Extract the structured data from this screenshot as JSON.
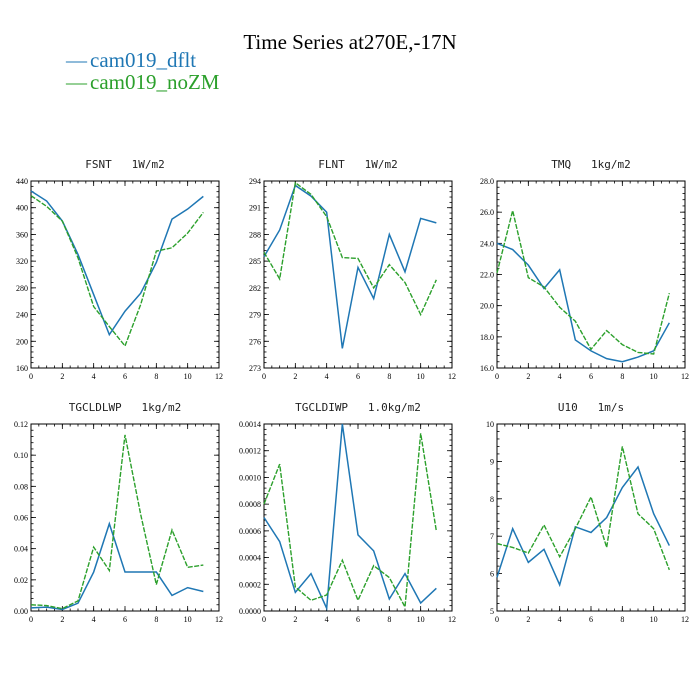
{
  "colors": {
    "dflt": "#1f77b4",
    "noZM": "#2ca02c"
  },
  "chart_data": {
    "type": "line",
    "title": "Time Series at270E,-17N",
    "legend": [
      "cam019_dflt",
      "cam019_noZM"
    ],
    "legend_marker": "—",
    "x": [
      0,
      1,
      2,
      3,
      4,
      5,
      6,
      7,
      8,
      9,
      10,
      11
    ],
    "xlim": [
      0,
      12
    ],
    "xticks": [
      0,
      2,
      4,
      6,
      8,
      10,
      12
    ],
    "xtick_labels": [
      "0",
      "2",
      "4",
      "6",
      "8",
      "10",
      "12"
    ],
    "panels": [
      {
        "title": "FSNT   1W/m2",
        "ylim": [
          160,
          440
        ],
        "yticks": [
          160,
          200,
          240,
          280,
          320,
          360,
          400,
          440
        ],
        "ytick_labels": [
          "160",
          "200",
          "240",
          "280",
          "320",
          "360",
          "400",
          "440"
        ],
        "series": [
          {
            "name": "cam019_dflt",
            "values": [
              425,
              410,
              380,
              330,
              270,
              210,
              245,
              272,
              318,
              383,
              398,
              417
            ]
          },
          {
            "name": "cam019_noZM",
            "values": [
              418,
              402,
              380,
              325,
              252,
              222,
              193,
              255,
              335,
              340,
              362,
              393
            ]
          }
        ]
      },
      {
        "title": "FLNT   1W/m2",
        "ylim": [
          273,
          294
        ],
        "yticks": [
          273,
          276,
          279,
          282,
          285,
          288,
          291,
          294
        ],
        "ytick_labels": [
          "273",
          "276",
          "279",
          "282",
          "285",
          "288",
          "291",
          "294"
        ],
        "series": [
          {
            "name": "cam019_dflt",
            "values": [
              285.5,
              288.5,
              293.5,
              292.3,
              290.5,
              275.2,
              284.3,
              280.8,
              288.0,
              283.8,
              289.8,
              289.3
            ]
          },
          {
            "name": "cam019_noZM",
            "values": [
              286.0,
              283.0,
              293.8,
              292.5,
              290.0,
              285.4,
              285.3,
              282.0,
              284.6,
              282.6,
              279.0,
              282.9
            ]
          }
        ]
      },
      {
        "title": "TMQ   1kg/m2",
        "ylim": [
          16.0,
          28.0
        ],
        "yticks": [
          16,
          18,
          20,
          22,
          24,
          26,
          28
        ],
        "ytick_labels": [
          "16.0",
          "18.0",
          "20.0",
          "22.0",
          "24.0",
          "26.0",
          "28.0"
        ],
        "series": [
          {
            "name": "cam019_dflt",
            "values": [
              24.0,
              23.6,
              22.6,
              21.1,
              22.3,
              17.8,
              17.1,
              16.6,
              16.4,
              16.7,
              17.1,
              18.9
            ]
          },
          {
            "name": "cam019_noZM",
            "values": [
              22.1,
              26.1,
              21.8,
              21.2,
              19.9,
              19.0,
              17.2,
              18.4,
              17.5,
              17.0,
              16.9,
              20.8
            ]
          }
        ]
      },
      {
        "title": "TGCLDLWP   1kg/m2",
        "ylim": [
          0.0,
          0.12
        ],
        "yticks": [
          0,
          0.02,
          0.04,
          0.06,
          0.08,
          0.1,
          0.12
        ],
        "ytick_labels": [
          "0.00",
          "0.02",
          "0.04",
          "0.06",
          "0.08",
          "0.10",
          "0.12"
        ],
        "series": [
          {
            "name": "cam019_dflt",
            "values": [
              0.002,
              0.0025,
              0.001,
              0.005,
              0.025,
              0.056,
              0.025,
              0.025,
              0.025,
              0.01,
              0.015,
              0.0125
            ]
          },
          {
            "name": "cam019_noZM",
            "values": [
              0.004,
              0.0035,
              0.0015,
              0.0065,
              0.041,
              0.026,
              0.113,
              0.062,
              0.017,
              0.052,
              0.028,
              0.0295
            ]
          }
        ]
      },
      {
        "title": "TGCLDIWP   1.0kg/m2",
        "ylim": [
          0.0,
          0.0014
        ],
        "yticks": [
          0,
          0.0002,
          0.0004,
          0.0006,
          0.0008,
          0.001,
          0.0012,
          0.0014
        ],
        "ytick_labels": [
          "0.0000",
          "0.0002",
          "0.0004",
          "0.0006",
          "0.0008",
          "0.0010",
          "0.0012",
          "0.0014"
        ],
        "series": [
          {
            "name": "cam019_dflt",
            "values": [
              0.0007,
              0.00052,
              0.00014,
              0.00028,
              2e-05,
              0.0014,
              0.00057,
              0.00045,
              9e-05,
              0.00028,
              6e-05,
              0.00017
            ]
          },
          {
            "name": "cam019_noZM",
            "values": [
              0.0008,
              0.0011,
              0.00018,
              8e-05,
              0.00012,
              0.00038,
              8e-05,
              0.00034,
              0.00025,
              3e-05,
              0.00133,
              0.0006
            ]
          }
        ]
      },
      {
        "title": "U10   1m/s",
        "ylim": [
          5,
          10
        ],
        "yticks": [
          5,
          6,
          7,
          8,
          9,
          10
        ],
        "ytick_labels": [
          "5",
          "6",
          "7",
          "8",
          "9",
          "10"
        ],
        "series": [
          {
            "name": "cam019_dflt",
            "values": [
              5.9,
              7.2,
              6.3,
              6.65,
              5.7,
              7.25,
              7.1,
              7.5,
              8.3,
              8.85,
              7.6,
              6.75
            ]
          },
          {
            "name": "cam019_noZM",
            "values": [
              6.8,
              6.7,
              6.55,
              7.3,
              6.45,
              7.2,
              8.05,
              6.7,
              9.4,
              7.6,
              7.2,
              6.1
            ]
          }
        ]
      }
    ]
  }
}
